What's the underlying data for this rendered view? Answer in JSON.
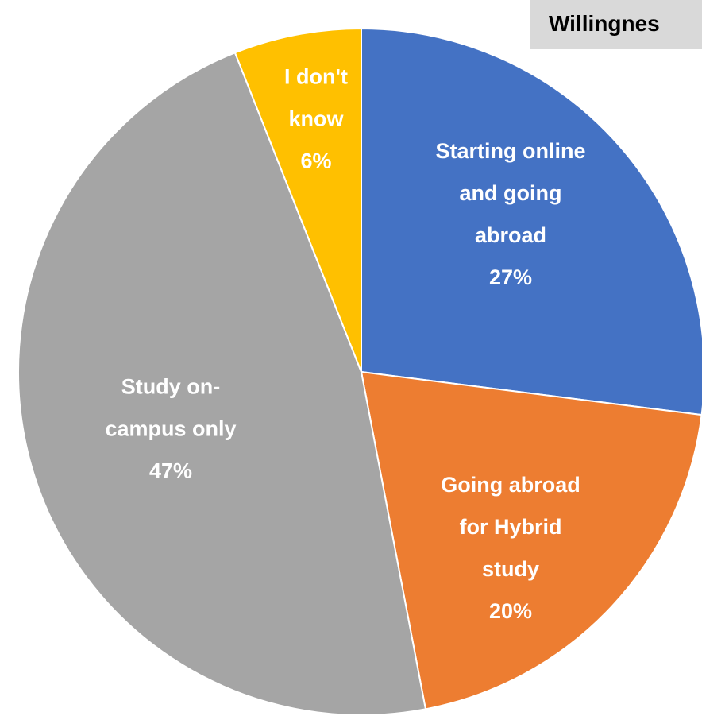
{
  "chart_data": {
    "type": "pie",
    "title": "Willingnes",
    "categories": [
      "Starting online and going abroad",
      "Going abroad for Hybrid study",
      "Study on-campus only",
      "I don't know"
    ],
    "values": [
      27,
      20,
      47,
      6
    ],
    "value_labels": [
      "27%",
      "20%",
      "47%",
      "6%"
    ],
    "colors": [
      "#4472c4",
      "#ed7d31",
      "#a5a5a5",
      "#ffc000"
    ]
  }
}
